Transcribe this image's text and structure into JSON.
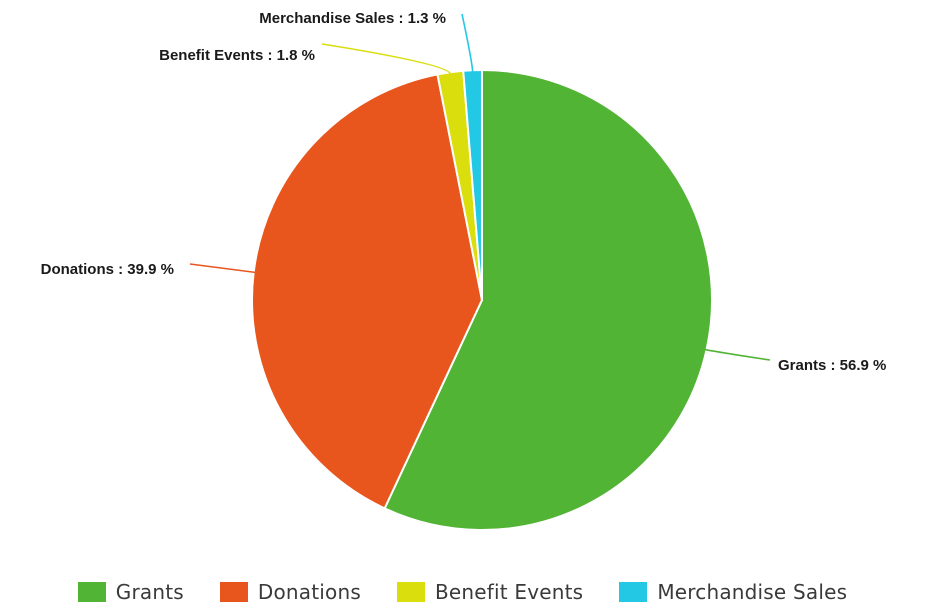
{
  "chart_data": {
    "type": "pie",
    "categories": [
      "Grants",
      "Donations",
      "Benefit Events",
      "Merchandise Sales"
    ],
    "values": [
      56.9,
      39.9,
      1.8,
      1.3
    ],
    "data_labels": [
      "Grants : 56.9 %",
      "Donations : 39.9 %",
      "Benefit Events : 1.8 %",
      "Merchandise Sales : 1.3 %"
    ],
    "colors": [
      "#52B435",
      "#E8561E",
      "#D9DE0C",
      "#22C8E4"
    ],
    "start": "12 o'clock",
    "direction": "clockwise",
    "legend_placement": "bottom"
  }
}
